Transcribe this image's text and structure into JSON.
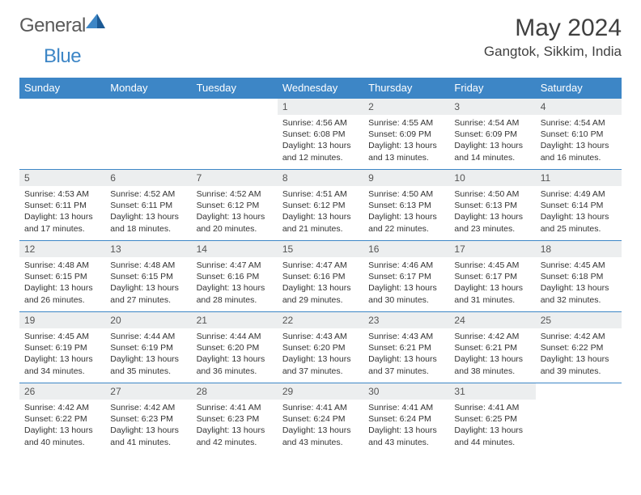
{
  "logo": {
    "text1": "General",
    "text2": "Blue"
  },
  "title": "May 2024",
  "location": "Gangtok, Sikkim, India",
  "colors": {
    "header_bg": "#3d86c6",
    "header_text": "#ffffff",
    "daynum_bg": "#eceeef",
    "border": "#3d86c6",
    "text": "#333333",
    "logo_gray": "#5a5a5a"
  },
  "weekdays": [
    "Sunday",
    "Monday",
    "Tuesday",
    "Wednesday",
    "Thursday",
    "Friday",
    "Saturday"
  ],
  "weeks": [
    [
      null,
      null,
      null,
      {
        "d": "1",
        "sr": "4:56 AM",
        "ss": "6:08 PM",
        "dl": "13 hours and 12 minutes."
      },
      {
        "d": "2",
        "sr": "4:55 AM",
        "ss": "6:09 PM",
        "dl": "13 hours and 13 minutes."
      },
      {
        "d": "3",
        "sr": "4:54 AM",
        "ss": "6:09 PM",
        "dl": "13 hours and 14 minutes."
      },
      {
        "d": "4",
        "sr": "4:54 AM",
        "ss": "6:10 PM",
        "dl": "13 hours and 16 minutes."
      }
    ],
    [
      {
        "d": "5",
        "sr": "4:53 AM",
        "ss": "6:11 PM",
        "dl": "13 hours and 17 minutes."
      },
      {
        "d": "6",
        "sr": "4:52 AM",
        "ss": "6:11 PM",
        "dl": "13 hours and 18 minutes."
      },
      {
        "d": "7",
        "sr": "4:52 AM",
        "ss": "6:12 PM",
        "dl": "13 hours and 20 minutes."
      },
      {
        "d": "8",
        "sr": "4:51 AM",
        "ss": "6:12 PM",
        "dl": "13 hours and 21 minutes."
      },
      {
        "d": "9",
        "sr": "4:50 AM",
        "ss": "6:13 PM",
        "dl": "13 hours and 22 minutes."
      },
      {
        "d": "10",
        "sr": "4:50 AM",
        "ss": "6:13 PM",
        "dl": "13 hours and 23 minutes."
      },
      {
        "d": "11",
        "sr": "4:49 AM",
        "ss": "6:14 PM",
        "dl": "13 hours and 25 minutes."
      }
    ],
    [
      {
        "d": "12",
        "sr": "4:48 AM",
        "ss": "6:15 PM",
        "dl": "13 hours and 26 minutes."
      },
      {
        "d": "13",
        "sr": "4:48 AM",
        "ss": "6:15 PM",
        "dl": "13 hours and 27 minutes."
      },
      {
        "d": "14",
        "sr": "4:47 AM",
        "ss": "6:16 PM",
        "dl": "13 hours and 28 minutes."
      },
      {
        "d": "15",
        "sr": "4:47 AM",
        "ss": "6:16 PM",
        "dl": "13 hours and 29 minutes."
      },
      {
        "d": "16",
        "sr": "4:46 AM",
        "ss": "6:17 PM",
        "dl": "13 hours and 30 minutes."
      },
      {
        "d": "17",
        "sr": "4:45 AM",
        "ss": "6:17 PM",
        "dl": "13 hours and 31 minutes."
      },
      {
        "d": "18",
        "sr": "4:45 AM",
        "ss": "6:18 PM",
        "dl": "13 hours and 32 minutes."
      }
    ],
    [
      {
        "d": "19",
        "sr": "4:45 AM",
        "ss": "6:19 PM",
        "dl": "13 hours and 34 minutes."
      },
      {
        "d": "20",
        "sr": "4:44 AM",
        "ss": "6:19 PM",
        "dl": "13 hours and 35 minutes."
      },
      {
        "d": "21",
        "sr": "4:44 AM",
        "ss": "6:20 PM",
        "dl": "13 hours and 36 minutes."
      },
      {
        "d": "22",
        "sr": "4:43 AM",
        "ss": "6:20 PM",
        "dl": "13 hours and 37 minutes."
      },
      {
        "d": "23",
        "sr": "4:43 AM",
        "ss": "6:21 PM",
        "dl": "13 hours and 37 minutes."
      },
      {
        "d": "24",
        "sr": "4:42 AM",
        "ss": "6:21 PM",
        "dl": "13 hours and 38 minutes."
      },
      {
        "d": "25",
        "sr": "4:42 AM",
        "ss": "6:22 PM",
        "dl": "13 hours and 39 minutes."
      }
    ],
    [
      {
        "d": "26",
        "sr": "4:42 AM",
        "ss": "6:22 PM",
        "dl": "13 hours and 40 minutes."
      },
      {
        "d": "27",
        "sr": "4:42 AM",
        "ss": "6:23 PM",
        "dl": "13 hours and 41 minutes."
      },
      {
        "d": "28",
        "sr": "4:41 AM",
        "ss": "6:23 PM",
        "dl": "13 hours and 42 minutes."
      },
      {
        "d": "29",
        "sr": "4:41 AM",
        "ss": "6:24 PM",
        "dl": "13 hours and 43 minutes."
      },
      {
        "d": "30",
        "sr": "4:41 AM",
        "ss": "6:24 PM",
        "dl": "13 hours and 43 minutes."
      },
      {
        "d": "31",
        "sr": "4:41 AM",
        "ss": "6:25 PM",
        "dl": "13 hours and 44 minutes."
      },
      null
    ]
  ],
  "labels": {
    "sunrise": "Sunrise:",
    "sunset": "Sunset:",
    "daylight": "Daylight:"
  }
}
